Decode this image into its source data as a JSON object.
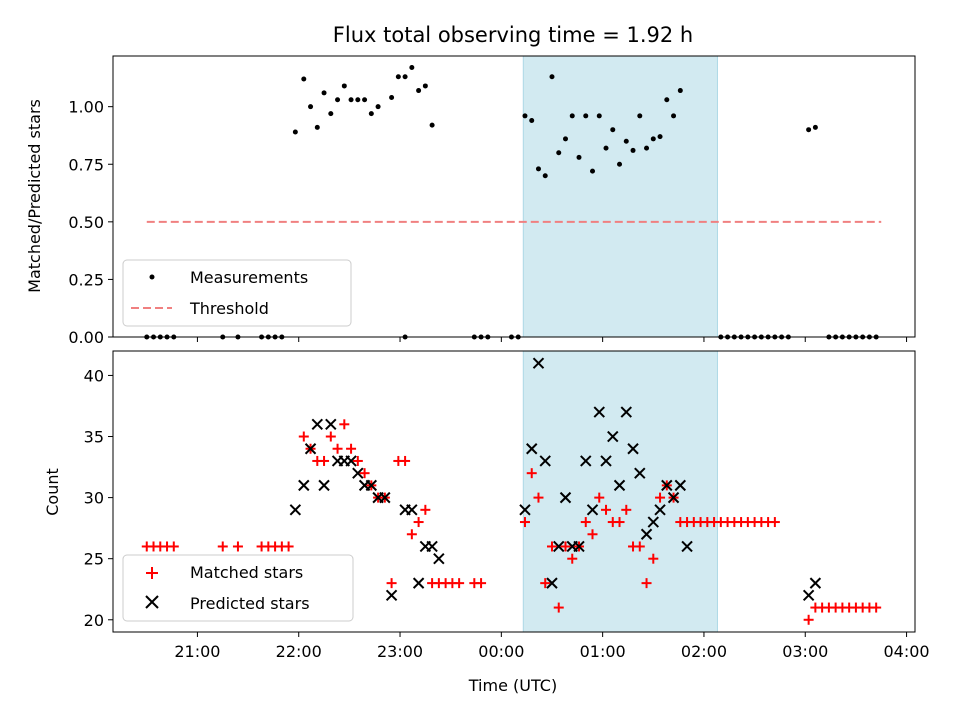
{
  "chart_data": [
    {
      "type": "scatter",
      "title": "Flux total observing time = 1.92 h",
      "xlabel": "",
      "ylabel": "Matched/Predicted stars",
      "ylim": [
        0,
        1.22
      ],
      "xlim": [
        "20:10",
        "04:05"
      ],
      "x_unit": "time (UTC, HH:MM, times after 24:00 fall on the next day)",
      "x_ticks": [
        "21:00",
        "22:00",
        "23:00",
        "00:00",
        "01:00",
        "02:00",
        "03:00",
        "04:00"
      ],
      "y_ticks": [
        "0.00",
        "0.25",
        "0.50",
        "0.75",
        "1.00"
      ],
      "shaded_band": {
        "x_start": "00:13",
        "x_end": "02:08",
        "color": "#add8e6"
      },
      "legend": {
        "position": "lower-left",
        "entries": [
          "Measurements",
          "Threshold"
        ]
      },
      "series": [
        {
          "name": "Measurements",
          "marker": "dot",
          "color": "#000000",
          "points": [
            [
              "20:30",
              0
            ],
            [
              "20:34",
              0
            ],
            [
              "20:38",
              0
            ],
            [
              "20:42",
              0
            ],
            [
              "20:46",
              0
            ],
            [
              "21:15",
              0
            ],
            [
              "21:24",
              0
            ],
            [
              "21:38",
              0
            ],
            [
              "21:42",
              0
            ],
            [
              "21:46",
              0
            ],
            [
              "21:50",
              0
            ],
            [
              "21:58",
              0.89
            ],
            [
              "22:03",
              1.12
            ],
            [
              "22:07",
              1.0
            ],
            [
              "22:11",
              0.91
            ],
            [
              "22:15",
              1.06
            ],
            [
              "22:19",
              0.97
            ],
            [
              "22:23",
              1.03
            ],
            [
              "22:27",
              1.09
            ],
            [
              "22:31",
              1.03
            ],
            [
              "22:35",
              1.03
            ],
            [
              "22:39",
              1.03
            ],
            [
              "22:43",
              0.97
            ],
            [
              "22:47",
              1.0
            ],
            [
              "23:03",
              0
            ],
            [
              "22:55",
              1.04
            ],
            [
              "22:59",
              1.13
            ],
            [
              "23:03",
              1.13
            ],
            [
              "23:07",
              1.17
            ],
            [
              "23:11",
              1.07
            ],
            [
              "23:15",
              1.09
            ],
            [
              "23:19",
              0.92
            ],
            [
              "23:44",
              0
            ],
            [
              "23:48",
              0
            ],
            [
              "23:52",
              0
            ],
            [
              "00:06",
              0
            ],
            [
              "00:10",
              0
            ],
            [
              "00:14",
              0.96
            ],
            [
              "00:18",
              0.94
            ],
            [
              "00:22",
              0.73
            ],
            [
              "00:26",
              0.7
            ],
            [
              "00:30",
              1.13
            ],
            [
              "00:34",
              0.8
            ],
            [
              "00:38",
              0.86
            ],
            [
              "00:42",
              0.96
            ],
            [
              "00:46",
              0.78
            ],
            [
              "00:50",
              0.96
            ],
            [
              "00:54",
              0.72
            ],
            [
              "00:58",
              0.96
            ],
            [
              "01:02",
              0.82
            ],
            [
              "01:06",
              0.9
            ],
            [
              "01:10",
              0.75
            ],
            [
              "01:14",
              0.85
            ],
            [
              "01:18",
              0.81
            ],
            [
              "01:22",
              0.96
            ],
            [
              "01:26",
              0.82
            ],
            [
              "01:30",
              0.86
            ],
            [
              "01:34",
              0.87
            ],
            [
              "01:38",
              1.03
            ],
            [
              "01:42",
              0.96
            ],
            [
              "01:46",
              1.07
            ],
            [
              "02:10",
              0
            ],
            [
              "02:14",
              0
            ],
            [
              "02:18",
              0
            ],
            [
              "02:22",
              0
            ],
            [
              "02:26",
              0
            ],
            [
              "02:30",
              0
            ],
            [
              "02:34",
              0
            ],
            [
              "02:38",
              0
            ],
            [
              "02:42",
              0
            ],
            [
              "02:46",
              0
            ],
            [
              "02:50",
              0
            ],
            [
              "03:02",
              0.9
            ],
            [
              "03:06",
              0.91
            ],
            [
              "03:14",
              0
            ],
            [
              "03:18",
              0
            ],
            [
              "03:22",
              0
            ],
            [
              "03:26",
              0
            ],
            [
              "03:30",
              0
            ],
            [
              "03:34",
              0
            ],
            [
              "03:38",
              0
            ],
            [
              "03:42",
              0
            ]
          ]
        },
        {
          "name": "Threshold",
          "marker": "dashed-line",
          "color": "#f08080",
          "points": [
            [
              "20:30",
              0.5
            ],
            [
              "03:45",
              0.5
            ]
          ]
        }
      ]
    },
    {
      "type": "scatter",
      "title": "",
      "xlabel": "Time (UTC)",
      "ylabel": "Count",
      "ylim": [
        19,
        42
      ],
      "xlim": [
        "20:10",
        "04:05"
      ],
      "x_unit": "time (UTC, HH:MM, times after 24:00 fall on the next day)",
      "x_ticks": [
        "21:00",
        "22:00",
        "23:00",
        "00:00",
        "01:00",
        "02:00",
        "03:00",
        "04:00"
      ],
      "y_ticks": [
        "20",
        "25",
        "30",
        "35",
        "40"
      ],
      "shaded_band": {
        "x_start": "00:13",
        "x_end": "02:08",
        "color": "#add8e6"
      },
      "legend": {
        "position": "lower-left",
        "entries": [
          "Matched stars",
          "Predicted stars"
        ]
      },
      "series": [
        {
          "name": "Matched stars",
          "marker": "plus",
          "color": "#ff0000",
          "points": [
            [
              "20:30",
              26
            ],
            [
              "20:34",
              26
            ],
            [
              "20:38",
              26
            ],
            [
              "20:42",
              26
            ],
            [
              "20:46",
              26
            ],
            [
              "21:15",
              26
            ],
            [
              "21:24",
              26
            ],
            [
              "21:38",
              26
            ],
            [
              "21:42",
              26
            ],
            [
              "21:46",
              26
            ],
            [
              "21:50",
              26
            ],
            [
              "21:54",
              26
            ],
            [
              "22:03",
              35
            ],
            [
              "22:07",
              34
            ],
            [
              "22:11",
              33
            ],
            [
              "22:15",
              33
            ],
            [
              "22:19",
              35
            ],
            [
              "22:23",
              34
            ],
            [
              "22:27",
              36
            ],
            [
              "22:31",
              34
            ],
            [
              "22:35",
              33
            ],
            [
              "22:39",
              32
            ],
            [
              "22:43",
              31
            ],
            [
              "22:47",
              30
            ],
            [
              "22:51",
              30
            ],
            [
              "22:55",
              23
            ],
            [
              "22:59",
              33
            ],
            [
              "23:03",
              33
            ],
            [
              "23:07",
              27
            ],
            [
              "23:11",
              28
            ],
            [
              "23:15",
              29
            ],
            [
              "23:19",
              23
            ],
            [
              "23:23",
              23
            ],
            [
              "23:27",
              23
            ],
            [
              "23:31",
              23
            ],
            [
              "23:35",
              23
            ],
            [
              "23:44",
              23
            ],
            [
              "23:48",
              23
            ],
            [
              "00:14",
              28
            ],
            [
              "00:18",
              32
            ],
            [
              "00:22",
              30
            ],
            [
              "00:26",
              23
            ],
            [
              "00:30",
              26
            ],
            [
              "00:34",
              21
            ],
            [
              "00:38",
              26
            ],
            [
              "00:42",
              25
            ],
            [
              "00:46",
              26
            ],
            [
              "00:50",
              28
            ],
            [
              "00:54",
              27
            ],
            [
              "00:58",
              30
            ],
            [
              "01:02",
              29
            ],
            [
              "01:06",
              28
            ],
            [
              "01:10",
              28
            ],
            [
              "01:14",
              29
            ],
            [
              "01:18",
              26
            ],
            [
              "01:22",
              26
            ],
            [
              "01:26",
              23
            ],
            [
              "01:30",
              25
            ],
            [
              "01:34",
              30
            ],
            [
              "01:38",
              31
            ],
            [
              "01:42",
              30
            ],
            [
              "01:46",
              28
            ],
            [
              "01:50",
              28
            ],
            [
              "01:54",
              28
            ],
            [
              "01:58",
              28
            ],
            [
              "02:02",
              28
            ],
            [
              "02:06",
              28
            ],
            [
              "02:10",
              28
            ],
            [
              "02:14",
              28
            ],
            [
              "02:18",
              28
            ],
            [
              "02:22",
              28
            ],
            [
              "02:26",
              28
            ],
            [
              "02:30",
              28
            ],
            [
              "02:34",
              28
            ],
            [
              "02:38",
              28
            ],
            [
              "02:42",
              28
            ],
            [
              "03:02",
              20
            ],
            [
              "03:06",
              21
            ],
            [
              "03:10",
              21
            ],
            [
              "03:14",
              21
            ],
            [
              "03:18",
              21
            ],
            [
              "03:22",
              21
            ],
            [
              "03:26",
              21
            ],
            [
              "03:30",
              21
            ],
            [
              "03:34",
              21
            ],
            [
              "03:38",
              21
            ],
            [
              "03:42",
              21
            ]
          ]
        },
        {
          "name": "Predicted stars",
          "marker": "x",
          "color": "#000000",
          "points": [
            [
              "21:58",
              29
            ],
            [
              "22:03",
              31
            ],
            [
              "22:07",
              34
            ],
            [
              "22:11",
              36
            ],
            [
              "22:15",
              31
            ],
            [
              "22:19",
              36
            ],
            [
              "22:23",
              33
            ],
            [
              "22:27",
              33
            ],
            [
              "22:31",
              33
            ],
            [
              "22:35",
              32
            ],
            [
              "22:39",
              31
            ],
            [
              "22:43",
              31
            ],
            [
              "22:47",
              30
            ],
            [
              "22:51",
              30
            ],
            [
              "22:55",
              22
            ],
            [
              "23:03",
              29
            ],
            [
              "23:07",
              29
            ],
            [
              "23:11",
              23
            ],
            [
              "23:15",
              26
            ],
            [
              "23:19",
              26
            ],
            [
              "23:23",
              25
            ],
            [
              "00:14",
              29
            ],
            [
              "00:18",
              34
            ],
            [
              "00:22",
              41
            ],
            [
              "00:26",
              33
            ],
            [
              "00:30",
              23
            ],
            [
              "00:34",
              26
            ],
            [
              "00:38",
              30
            ],
            [
              "00:42",
              26
            ],
            [
              "00:46",
              26
            ],
            [
              "00:50",
              33
            ],
            [
              "00:54",
              29
            ],
            [
              "00:58",
              37
            ],
            [
              "01:02",
              33
            ],
            [
              "01:06",
              35
            ],
            [
              "01:10",
              31
            ],
            [
              "01:14",
              37
            ],
            [
              "01:18",
              34
            ],
            [
              "01:22",
              32
            ],
            [
              "01:26",
              27
            ],
            [
              "01:30",
              28
            ],
            [
              "01:34",
              29
            ],
            [
              "01:38",
              31
            ],
            [
              "01:42",
              30
            ],
            [
              "01:46",
              31
            ],
            [
              "01:50",
              26
            ],
            [
              "03:02",
              22
            ],
            [
              "03:06",
              23
            ]
          ]
        }
      ]
    }
  ]
}
